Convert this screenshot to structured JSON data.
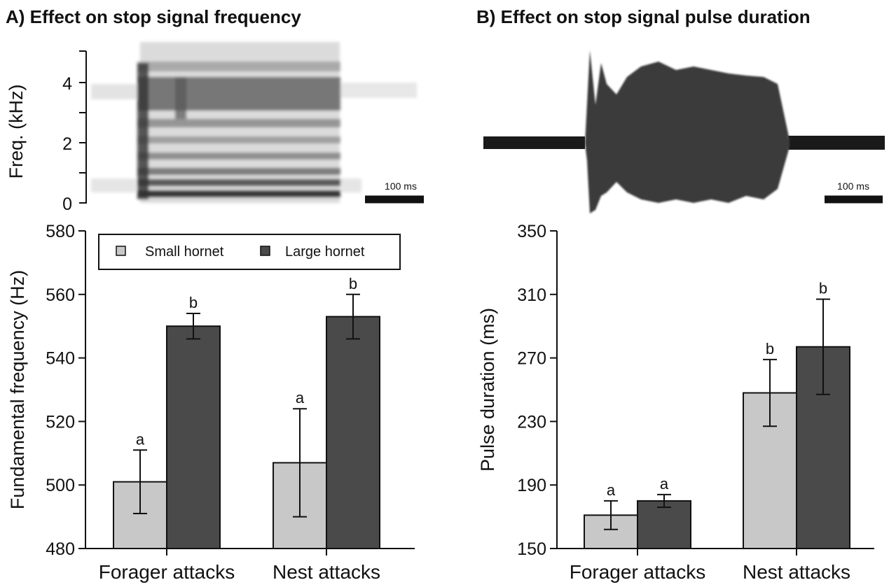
{
  "colors": {
    "small": "#c8c8c8",
    "large": "#4a4a4a",
    "axis": "#111111"
  },
  "panel_a": {
    "title": "A) Effect on stop signal frequency",
    "spectrogram": {
      "ylabel": "Freq. (kHz)",
      "ticks": [
        "0",
        "2",
        "4"
      ],
      "scale_label": "100 ms"
    }
  },
  "panel_b": {
    "title": "B) Effect on stop signal pulse duration",
    "waveform": {
      "scale_label": "100 ms"
    }
  },
  "legend": {
    "small": "Small hornet",
    "large": "Large hornet"
  },
  "chart_data": [
    {
      "type": "bar",
      "categories": [
        "Forager attacks",
        "Nest attacks"
      ],
      "series": [
        {
          "name": "Small hornet",
          "values": [
            501,
            507
          ],
          "err_low": [
            491,
            490
          ],
          "err_high": [
            511,
            524
          ],
          "labels": [
            "a",
            "a"
          ]
        },
        {
          "name": "Large hornet",
          "values": [
            550,
            553
          ],
          "err_low": [
            546,
            546
          ],
          "err_high": [
            554,
            560
          ],
          "labels": [
            "b",
            "b"
          ]
        }
      ],
      "ylabel": "Fundamental frequency (Hz)",
      "ylim": [
        480,
        580
      ],
      "yticks": [
        480,
        500,
        520,
        540,
        560,
        580
      ],
      "legend": "top"
    },
    {
      "type": "bar",
      "categories": [
        "Forager attacks",
        "Nest attacks"
      ],
      "series": [
        {
          "name": "Small hornet",
          "values": [
            171,
            248
          ],
          "err_low": [
            162,
            227
          ],
          "err_high": [
            180,
            269
          ],
          "labels": [
            "a",
            "b"
          ]
        },
        {
          "name": "Large hornet",
          "values": [
            180,
            277
          ],
          "err_low": [
            176,
            247
          ],
          "err_high": [
            184,
            307
          ],
          "labels": [
            "a",
            "b"
          ]
        }
      ],
      "ylabel": "Pulse duration (ms)",
      "ylim": [
        150,
        350
      ],
      "yticks": [
        150,
        190,
        230,
        270,
        310,
        350
      ]
    }
  ]
}
